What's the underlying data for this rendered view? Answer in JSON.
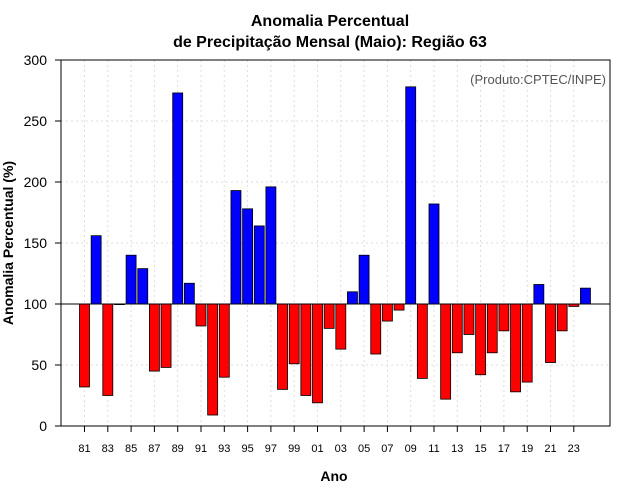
{
  "chart_data": {
    "type": "bar",
    "title": "Anomalia Percentual",
    "subtitle": "de Precipitação Mensal (Maio): Região 63",
    "xlabel": "Ano",
    "ylabel": "Anomalia Percentual (%)",
    "annotation": "(Produto:CPTEC/INPE)",
    "ylim": [
      0,
      300
    ],
    "yticks": [
      0,
      50,
      100,
      150,
      200,
      250,
      300
    ],
    "baseline": 100,
    "grid": true,
    "categories": [
      "81",
      "82",
      "83",
      "84",
      "85",
      "86",
      "87",
      "88",
      "89",
      "90",
      "91",
      "92",
      "93",
      "94",
      "95",
      "96",
      "97",
      "98",
      "99",
      "00",
      "01",
      "02",
      "03",
      "04",
      "05",
      "06",
      "07",
      "08",
      "09",
      "10",
      "11",
      "12",
      "13",
      "14",
      "15",
      "16",
      "17",
      "18",
      "19",
      "20",
      "21",
      "22",
      "23",
      "24"
    ],
    "xtick_labels": [
      "81",
      "83",
      "85",
      "87",
      "89",
      "91",
      "93",
      "95",
      "97",
      "99",
      "01",
      "03",
      "05",
      "07",
      "09",
      "11",
      "13",
      "15",
      "17",
      "19",
      "21",
      "23"
    ],
    "values": [
      32,
      156,
      25,
      100,
      140,
      129,
      45,
      48,
      273,
      117,
      82,
      9,
      40,
      193,
      178,
      164,
      196,
      30,
      51,
      25,
      19,
      80,
      63,
      110,
      140,
      59,
      86,
      95,
      278,
      39,
      182,
      22,
      60,
      75,
      42,
      60,
      78,
      28,
      36,
      116,
      52,
      78,
      98,
      113
    ],
    "colors": {
      "above": "#0000ff",
      "below": "#ff0000",
      "grid": "#dddddd",
      "frame": "#000000"
    }
  }
}
